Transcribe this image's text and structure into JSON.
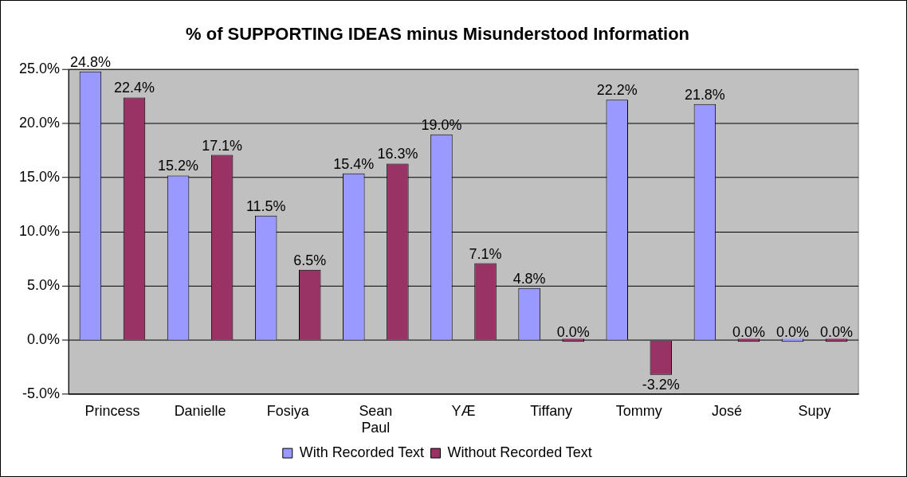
{
  "chart_data": {
    "type": "bar",
    "title": "% of SUPPORTING IDEAS minus Misunderstood Information",
    "categories": [
      "Princess",
      "Danielle",
      "Fosiya",
      "Sean Paul",
      "YÆ",
      "Tiffany",
      "Tommy",
      "José",
      "Supy"
    ],
    "series": [
      {
        "name": "With Recorded Text",
        "color": "#9999ff",
        "values": [
          24.8,
          15.2,
          11.5,
          15.4,
          19.0,
          4.8,
          22.2,
          21.8,
          0.0
        ],
        "value_labels": [
          "24.8%",
          "15.2%",
          "11.5%",
          "15.4%",
          "19.0%",
          "4.8%",
          "22.2%",
          "21.8%",
          "0.0%"
        ]
      },
      {
        "name": "Without Recorded Text",
        "color": "#993366",
        "values": [
          22.4,
          17.1,
          6.5,
          16.3,
          7.1,
          0.0,
          -3.2,
          0.0,
          0.0
        ],
        "value_labels": [
          "22.4%",
          "17.1%",
          "6.5%",
          "16.3%",
          "7.1%",
          "0.0%",
          "-3.2%",
          "0.0%",
          "0.0%"
        ]
      }
    ],
    "ylim": [
      -5,
      25
    ],
    "yticks": [
      {
        "value": -5,
        "label": "-5.0%"
      },
      {
        "value": 0,
        "label": "0.0%"
      },
      {
        "value": 5,
        "label": "5.0%"
      },
      {
        "value": 10,
        "label": "10.0%"
      },
      {
        "value": 15,
        "label": "15.0%"
      },
      {
        "value": 20,
        "label": "20.0%"
      },
      {
        "value": 25,
        "label": "25.0%"
      }
    ],
    "grid": "y",
    "legend": "bottom"
  }
}
